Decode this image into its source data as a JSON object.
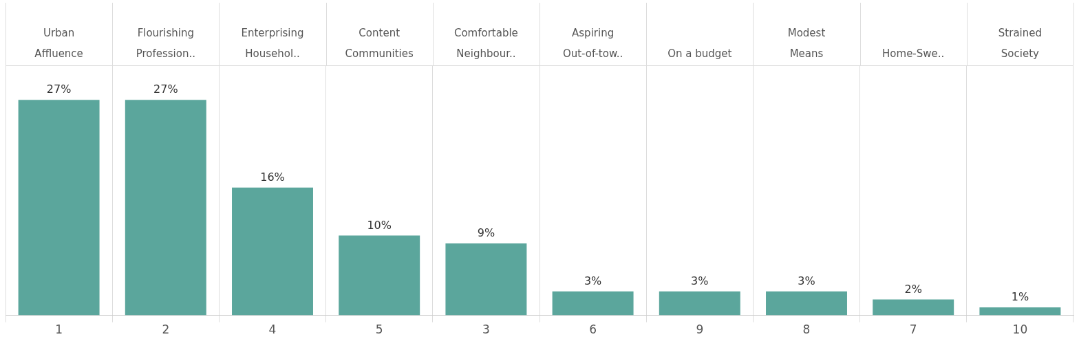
{
  "chart_data": {
    "type": "bar",
    "categories": [
      "1",
      "2",
      "4",
      "5",
      "3",
      "6",
      "9",
      "8",
      "7",
      "10"
    ],
    "values": [
      27,
      27,
      16,
      10,
      9,
      3,
      3,
      3,
      2,
      1
    ],
    "value_labels": [
      "27%",
      "27%",
      "16%",
      "10%",
      "9%",
      "3%",
      "3%",
      "3%",
      "2%",
      "1%"
    ],
    "color": "#5ba69c",
    "grid": "x",
    "annotations": [
      "Urban\nAffluence",
      "Flourishing\nProfession..",
      "Enterprising\nHousehol..",
      "Content\nCommunities",
      "Comfortable\nNeighbour..",
      "Aspiring\nOut-of-tow..",
      "On a budget",
      "Modest\nMeans",
      "Home-Swe..",
      "Strained\nSociety"
    ]
  }
}
